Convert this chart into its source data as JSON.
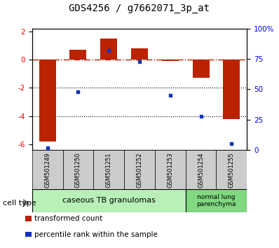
{
  "title": "GDS4256 / g7662071_3p_at",
  "samples": [
    "GSM501249",
    "GSM501250",
    "GSM501251",
    "GSM501252",
    "GSM501253",
    "GSM501254",
    "GSM501255"
  ],
  "red_bars": [
    -5.8,
    0.7,
    1.5,
    0.8,
    -0.08,
    -1.3,
    -4.2
  ],
  "blue_dots": [
    2,
    48,
    82,
    73,
    45,
    28,
    5
  ],
  "ylim_left": [
    -6.4,
    2.2
  ],
  "ylim_right": [
    0,
    100
  ],
  "yticks_left": [
    2,
    0,
    -2,
    -4,
    -6
  ],
  "yticks_right": [
    100,
    75,
    50,
    25,
    0
  ],
  "ytick_labels_right": [
    "100%",
    "75",
    "50",
    "25",
    "0"
  ],
  "group1_samples": 5,
  "group2_samples": 2,
  "group1_label": "caseous TB granulomas",
  "group2_label": "normal lung\nparenchyma",
  "group1_color": "#b8f0b8",
  "group2_color": "#80d880",
  "bar_color": "#bb2200",
  "dot_color": "#1133bb",
  "dotted_lines": [
    -2,
    -4
  ],
  "legend_red": "transformed count",
  "legend_blue": "percentile rank within the sample",
  "bar_width": 0.55
}
